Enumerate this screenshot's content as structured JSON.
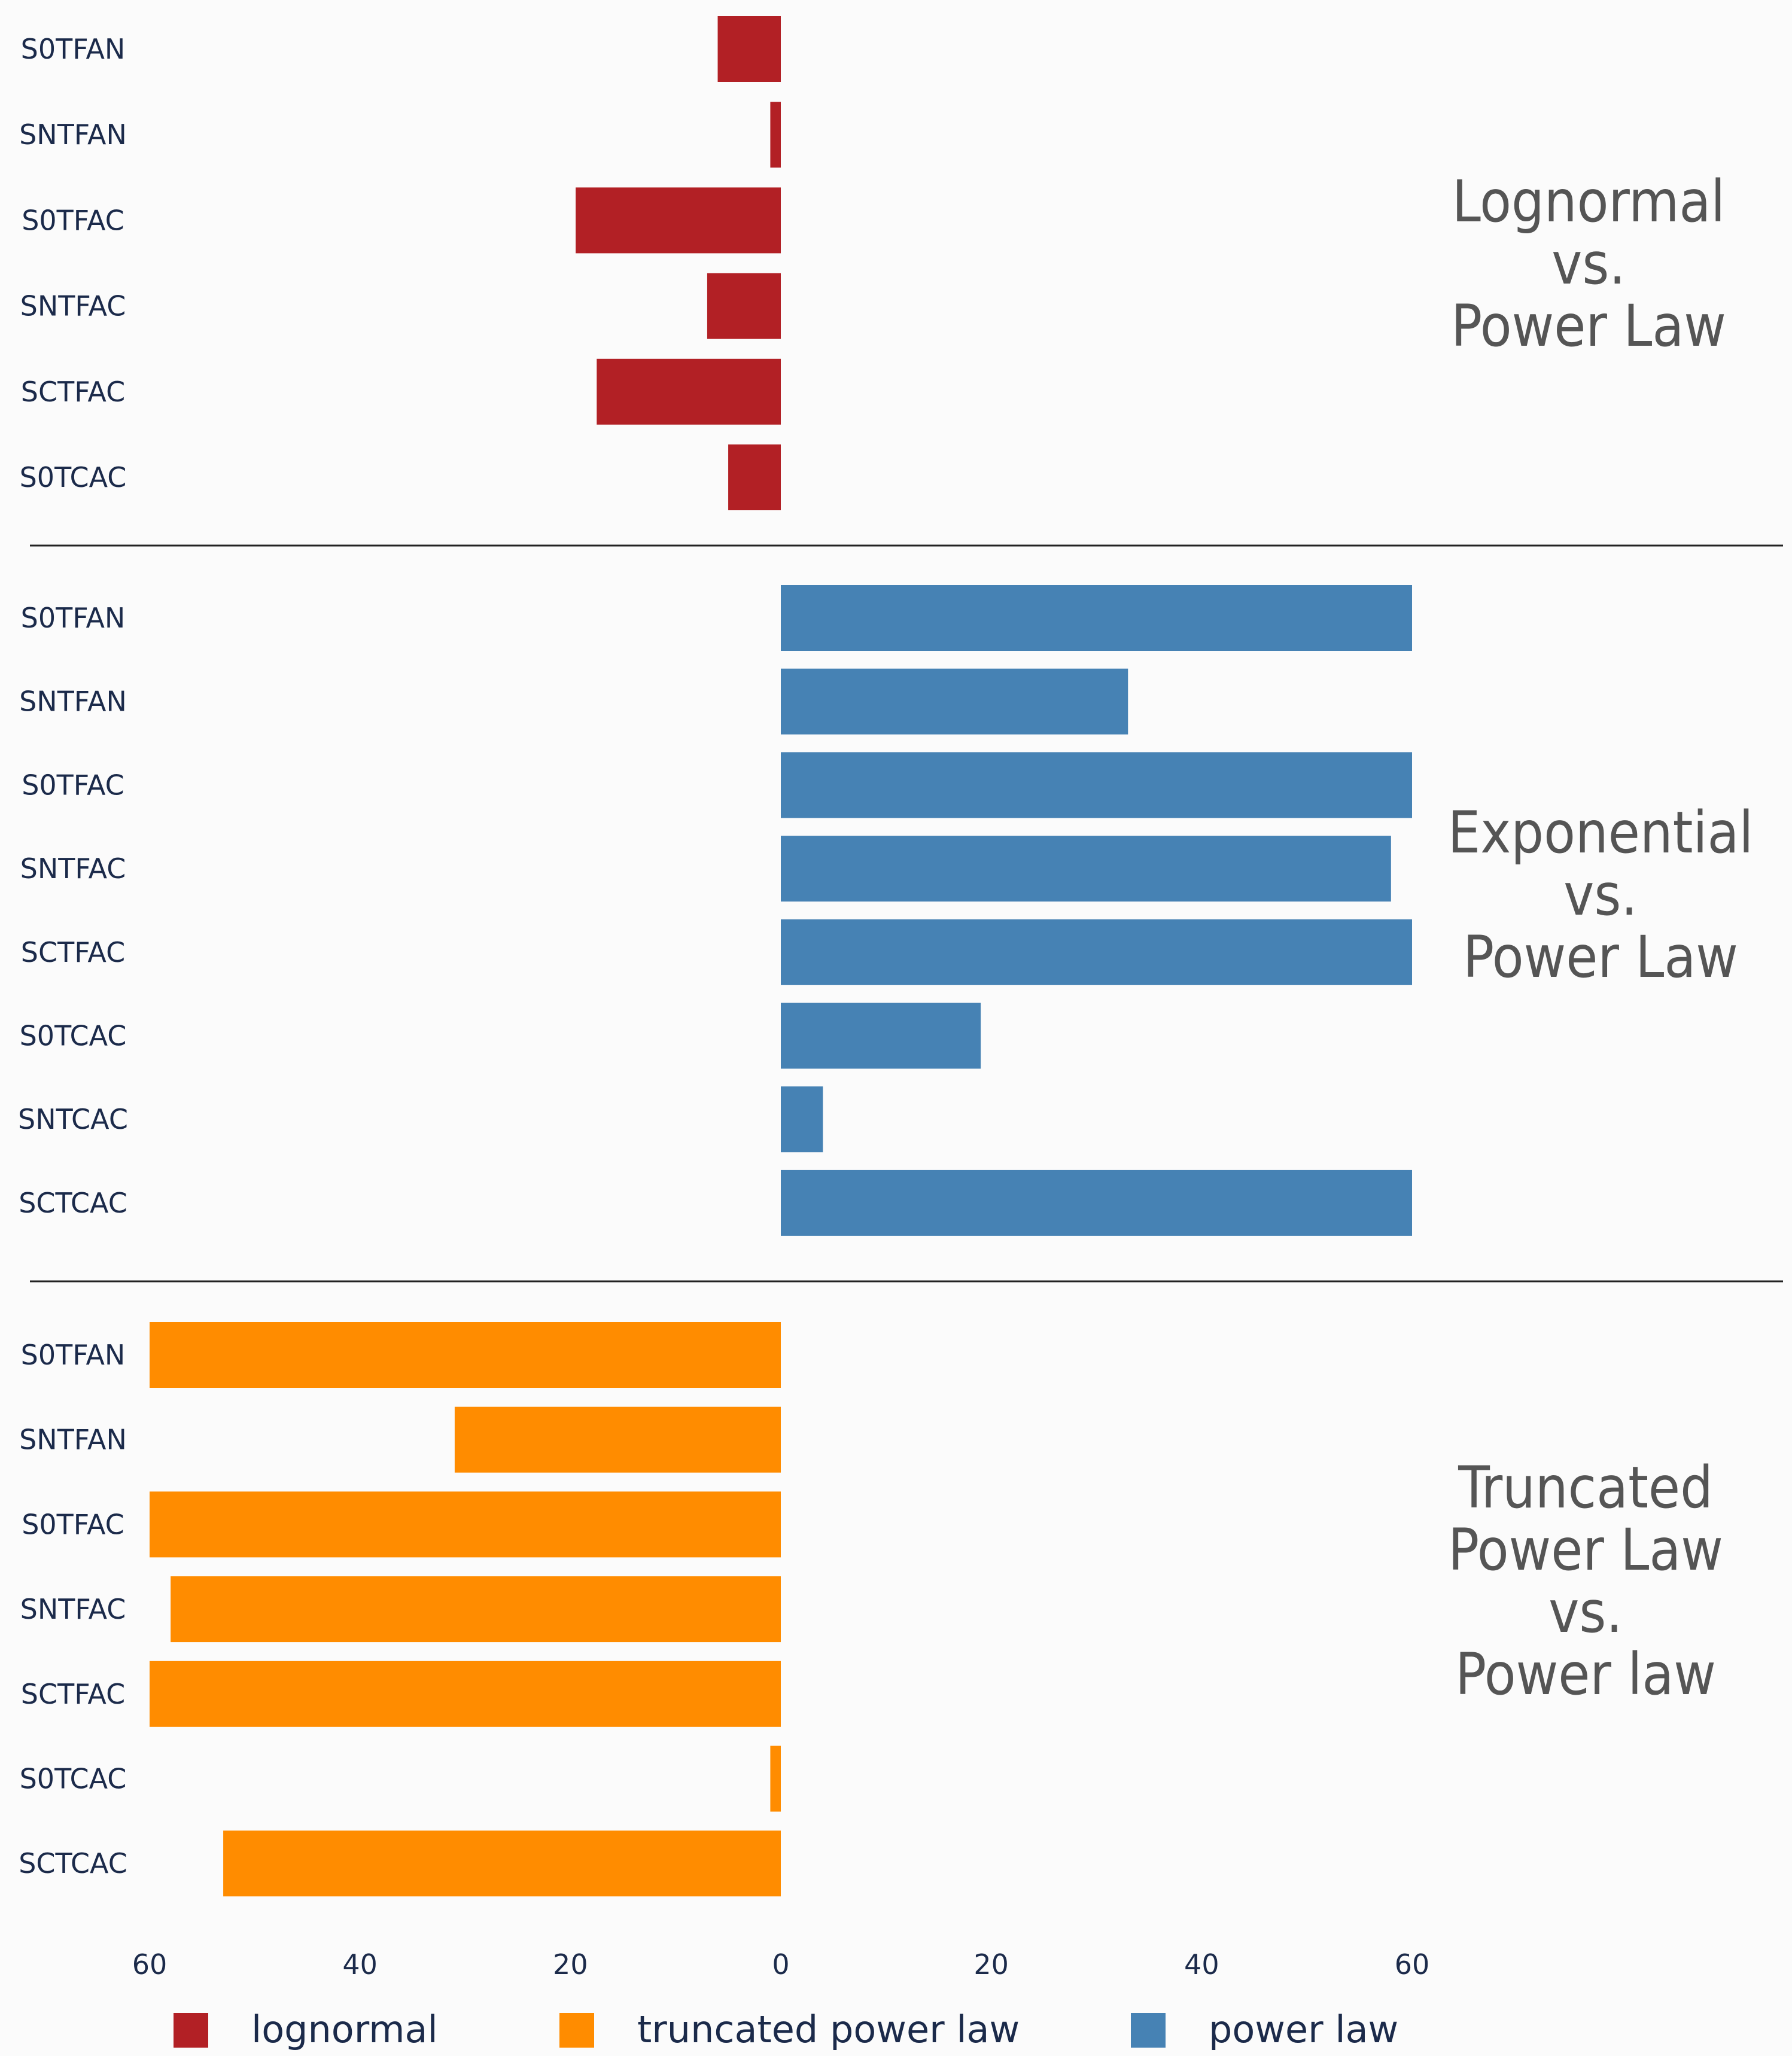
{
  "chart_data": {
    "type": "bar",
    "orientation": "horizontal",
    "xlim": [
      -60,
      60
    ],
    "x_ticks": [
      -60,
      -40,
      -20,
      0,
      20,
      40,
      60
    ],
    "x_tick_labels": [
      "60",
      "40",
      "20",
      "0",
      "20",
      "40",
      "60"
    ],
    "panels": [
      {
        "title_lines": [
          "Lognormal",
          "vs.",
          "Power Law"
        ],
        "series": "lognormal",
        "categories": [
          "S0TFAN",
          "SNTFAN",
          "S0TFAC",
          "SNTFAC",
          "SCTFAC",
          "S0TCAC"
        ],
        "values": [
          -6,
          -1,
          -19.5,
          -7,
          -17.5,
          -5
        ]
      },
      {
        "title_lines": [
          "Exponential",
          "vs.",
          "Power Law"
        ],
        "series": "power law",
        "categories": [
          "S0TFAN",
          "SNTFAN",
          "S0TFAC",
          "SNTFAC",
          "SCTFAC",
          "S0TCAC",
          "SNTCAC",
          "SCTCAC"
        ],
        "values": [
          60,
          33,
          60,
          58,
          60,
          19,
          4,
          60
        ]
      },
      {
        "title_lines": [
          "Truncated",
          "Power Law",
          "vs.",
          "Power law"
        ],
        "series": "truncated power law",
        "categories": [
          "S0TFAN",
          "SNTFAN",
          "S0TFAC",
          "SNTFAC",
          "SCTFAC",
          "S0TCAC",
          "SCTCAC"
        ],
        "values": [
          -60,
          -31,
          -60,
          -58,
          -60,
          -1,
          -53
        ]
      }
    ],
    "legend": [
      {
        "label": "lognormal",
        "color": "#b22025"
      },
      {
        "label": "truncated power law",
        "color": "#ff8c00"
      },
      {
        "label": "power law",
        "color": "#4682b4"
      }
    ],
    "legend_position": "bottom"
  }
}
